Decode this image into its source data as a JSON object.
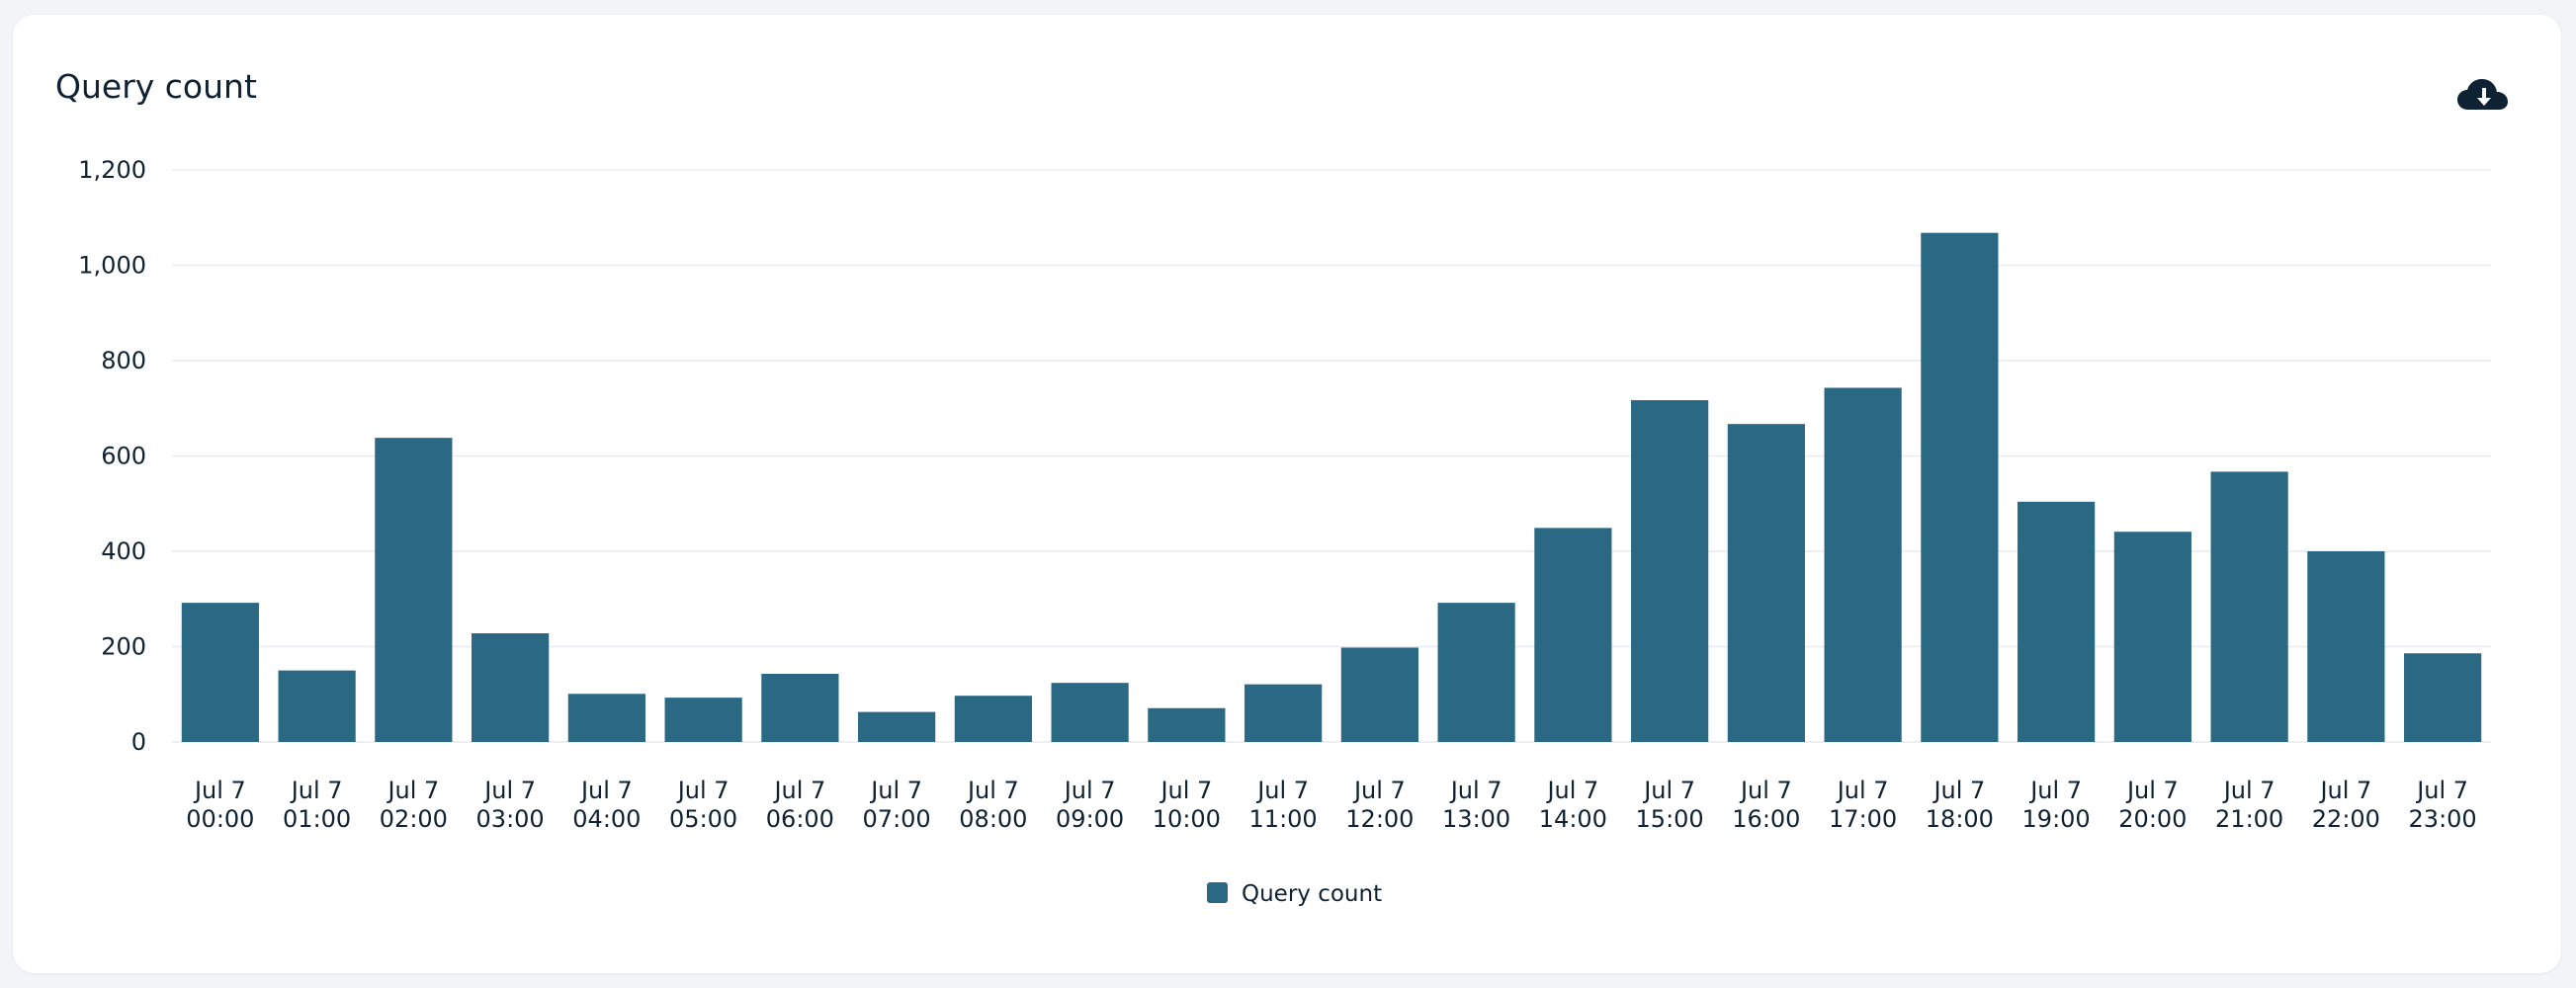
{
  "card": {
    "title": "Query count",
    "download_icon": "cloud-download-icon"
  },
  "chart_data": {
    "type": "bar",
    "title": "Query count",
    "xlabel": "",
    "ylabel": "",
    "ylim": [
      0,
      1200
    ],
    "yticks": [
      0,
      200,
      400,
      600,
      800,
      1000,
      1200
    ],
    "ytick_labels": [
      "0",
      "200",
      "400",
      "600",
      "800",
      "1,000",
      "1,200"
    ],
    "grid": true,
    "legend_position": "bottom-center",
    "categories": [
      [
        "Jul 7",
        "00:00"
      ],
      [
        "Jul 7",
        "01:00"
      ],
      [
        "Jul 7",
        "02:00"
      ],
      [
        "Jul 7",
        "03:00"
      ],
      [
        "Jul 7",
        "04:00"
      ],
      [
        "Jul 7",
        "05:00"
      ],
      [
        "Jul 7",
        "06:00"
      ],
      [
        "Jul 7",
        "07:00"
      ],
      [
        "Jul 7",
        "08:00"
      ],
      [
        "Jul 7",
        "09:00"
      ],
      [
        "Jul 7",
        "10:00"
      ],
      [
        "Jul 7",
        "11:00"
      ],
      [
        "Jul 7",
        "12:00"
      ],
      [
        "Jul 7",
        "13:00"
      ],
      [
        "Jul 7",
        "14:00"
      ],
      [
        "Jul 7",
        "15:00"
      ],
      [
        "Jul 7",
        "16:00"
      ],
      [
        "Jul 7",
        "17:00"
      ],
      [
        "Jul 7",
        "18:00"
      ],
      [
        "Jul 7",
        "19:00"
      ],
      [
        "Jul 7",
        "20:00"
      ],
      [
        "Jul 7",
        "21:00"
      ],
      [
        "Jul 7",
        "22:00"
      ],
      [
        "Jul 7",
        "23:00"
      ]
    ],
    "series": [
      {
        "name": "Query count",
        "color": "#2a6884",
        "values": [
          292,
          150,
          638,
          228,
          101,
          93,
          143,
          63,
          97,
          124,
          71,
          121,
          198,
          292,
          449,
          717,
          667,
          743,
          1068,
          504,
          441,
          567,
          400,
          186
        ]
      }
    ]
  }
}
